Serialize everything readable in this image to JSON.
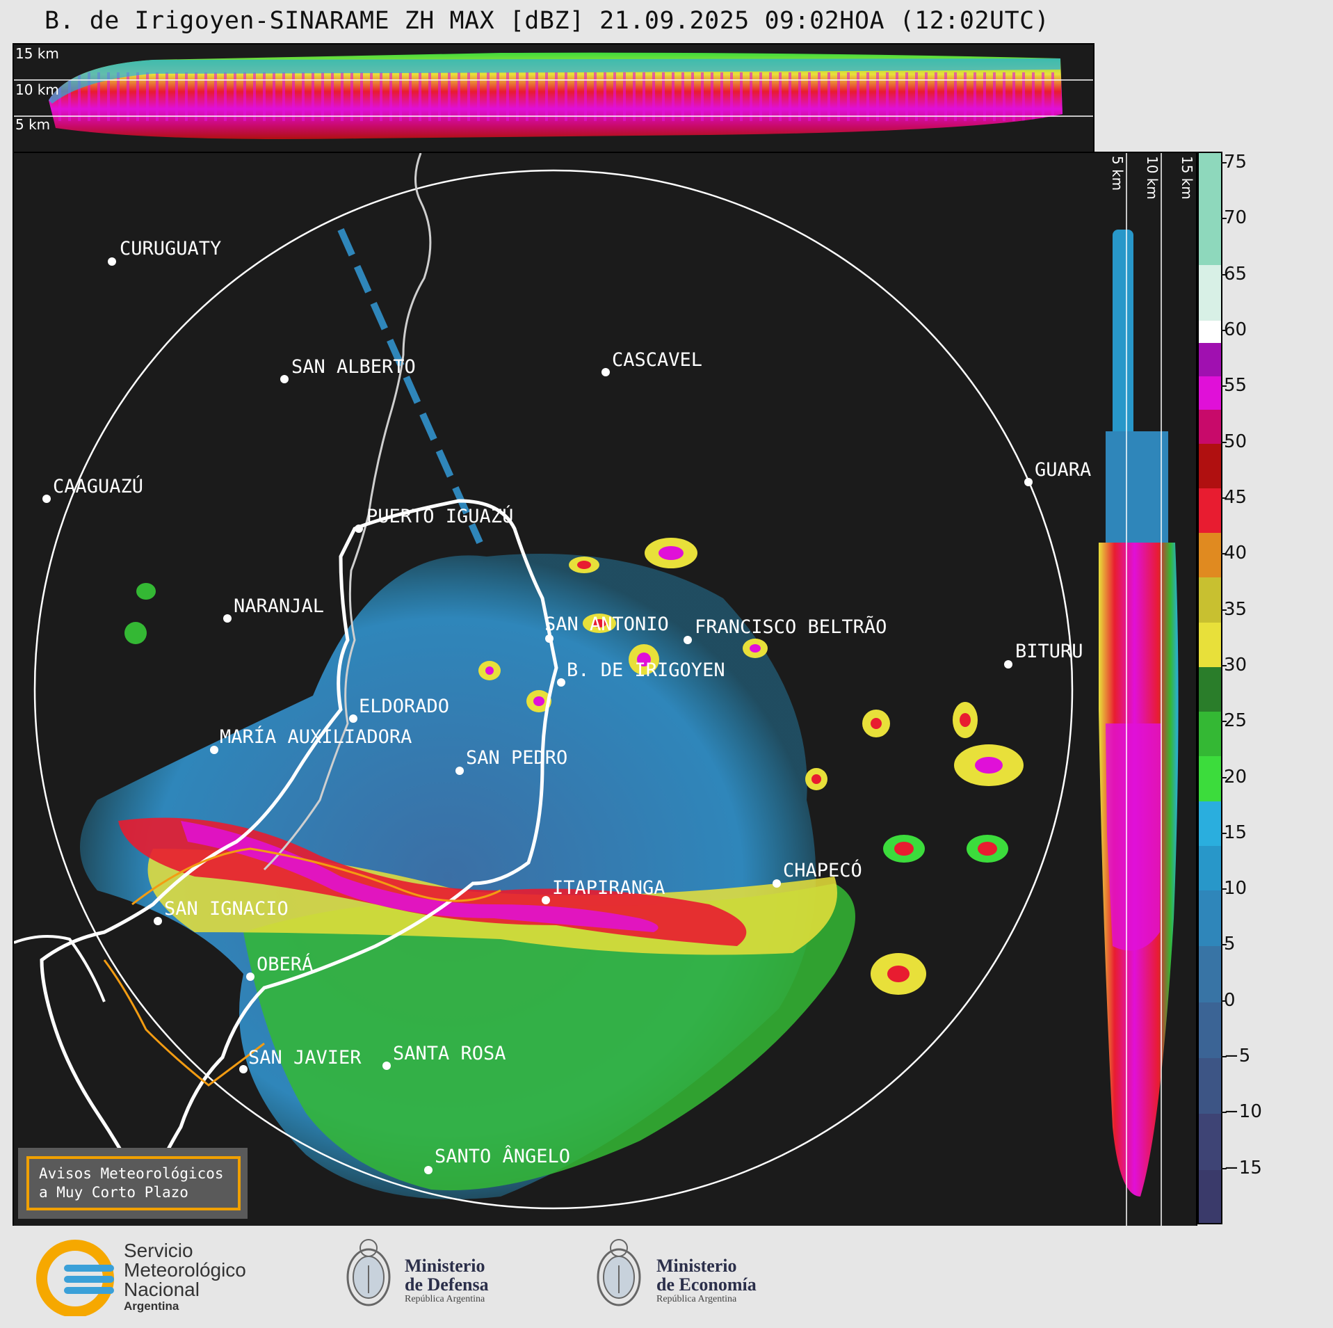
{
  "title": "B. de Irigoyen-SINARAME ZH MAX [dBZ] 21.09.2025 09:02HOA (12:02UTC)",
  "top_section": {
    "km_labels": [
      "15 km",
      "10 km",
      "5 km"
    ]
  },
  "right_section": {
    "km_labels": [
      "5 km",
      "10 km",
      "15 km"
    ]
  },
  "colorbar": {
    "unit": "dBZ",
    "ticks": [
      "75",
      "70",
      "65",
      "60",
      "55",
      "50",
      "45",
      "40",
      "35",
      "30",
      "25",
      "20",
      "15",
      "10",
      "5",
      "0",
      "−5",
      "−10",
      "−15"
    ],
    "min": -20,
    "max": 76,
    "segments": [
      {
        "from": -20,
        "to": -15,
        "color": "#3a3a6a"
      },
      {
        "from": -15,
        "to": -10,
        "color": "#3e4475"
      },
      {
        "from": -10,
        "to": -5,
        "color": "#3d5585"
      },
      {
        "from": -5,
        "to": 0,
        "color": "#3b6495"
      },
      {
        "from": 0,
        "to": 5,
        "color": "#3874a5"
      },
      {
        "from": 5,
        "to": 10,
        "color": "#2f86ba"
      },
      {
        "from": 10,
        "to": 14,
        "color": "#2897c9"
      },
      {
        "from": 14,
        "to": 18,
        "color": "#2aaede"
      },
      {
        "from": 18,
        "to": 22,
        "color": "#3cdc3c"
      },
      {
        "from": 22,
        "to": 26,
        "color": "#34b834"
      },
      {
        "from": 26,
        "to": 30,
        "color": "#2a7d2a"
      },
      {
        "from": 30,
        "to": 34,
        "color": "#e8e03a"
      },
      {
        "from": 34,
        "to": 38,
        "color": "#c8c030"
      },
      {
        "from": 38,
        "to": 42,
        "color": "#e08a20"
      },
      {
        "from": 42,
        "to": 46,
        "color": "#e81c30"
      },
      {
        "from": 46,
        "to": 50,
        "color": "#b01010"
      },
      {
        "from": 50,
        "to": 53,
        "color": "#c80a6a"
      },
      {
        "from": 53,
        "to": 56,
        "color": "#e010d8"
      },
      {
        "from": 56,
        "to": 59,
        "color": "#a010b0"
      },
      {
        "from": 59,
        "to": 61,
        "color": "#ffffff"
      },
      {
        "from": 61,
        "to": 66,
        "color": "#d8f0e6"
      },
      {
        "from": 66,
        "to": 76,
        "color": "#8ed8bc"
      }
    ]
  },
  "map": {
    "cities": [
      {
        "name": "CURUGUATY"
      },
      {
        "name": "SAN ALBERTO"
      },
      {
        "name": "CASCAVEL"
      },
      {
        "name": "CAAGUAZÚ"
      },
      {
        "name": "GUARA"
      },
      {
        "name": "PUERTO IGUAZÚ"
      },
      {
        "name": "NARANJAL"
      },
      {
        "name": "SAN ANTONIO"
      },
      {
        "name": "FRANCISCO BELTRÃO"
      },
      {
        "name": "BITURU"
      },
      {
        "name": "B. DE IRIGOYEN"
      },
      {
        "name": "ELDORADO"
      },
      {
        "name": "MARÍA AUXILIADORA"
      },
      {
        "name": "SAN PEDRO"
      },
      {
        "name": "CHAPECÓ"
      },
      {
        "name": "ITAPIRANGA"
      },
      {
        "name": "SAN IGNACIO"
      },
      {
        "name": "OBERÁ"
      },
      {
        "name": "SAN JAVIER"
      },
      {
        "name": "SANTA ROSA"
      },
      {
        "name": "SANTO ÂNGELO"
      }
    ]
  },
  "warning_box": {
    "line1": "Avisos Meteorológicos",
    "line2": "a Muy Corto Plazo"
  },
  "footer": {
    "smn": {
      "line1": "Servicio",
      "line2": "Meteorológico",
      "line3": "Nacional",
      "line4": "Argentina"
    },
    "defensa": {
      "line1": "Ministerio",
      "line2": "de Defensa",
      "line3": "República Argentina"
    },
    "economia": {
      "line1": "Ministerio",
      "line2": "de Economía",
      "line3": "República Argentina"
    }
  }
}
